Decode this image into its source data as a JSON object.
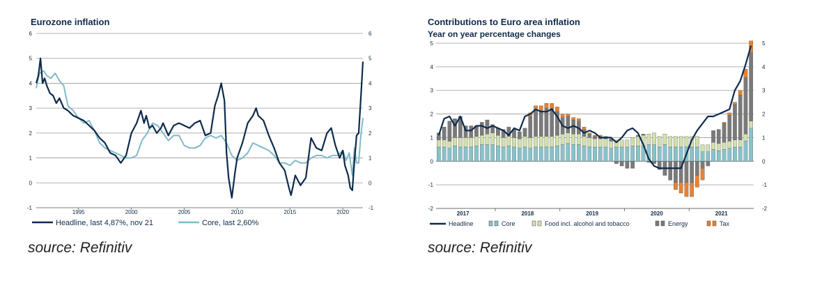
{
  "colors": {
    "headline": "#0d2a4c",
    "core_line": "#7fbac7",
    "core_bar": "#87c3cc",
    "food_bar": "#d2e0ad",
    "energy_bar": "#7a7a7a",
    "tax_bar": "#e8822f",
    "grid": "#9a9a9a"
  },
  "chart_data": [
    {
      "type": "line",
      "title": "Eurozone inflation",
      "ylim": [
        -1,
        6
      ],
      "yticks": [
        "6",
        "5",
        "4",
        "3",
        "2",
        "1",
        "0",
        "-1"
      ],
      "xlim": [
        1991,
        2021.9
      ],
      "xticks": [
        "1995",
        "2000",
        "2005",
        "2010",
        "2015",
        "2020"
      ],
      "legend": [
        "Headline, last 4,87%, nov 21",
        "Core, last 2,60%"
      ],
      "series": [
        {
          "name": "Headline",
          "x": [
            1991.0,
            1991.2,
            1991.4,
            1991.6,
            1991.8,
            1992.0,
            1992.3,
            1992.6,
            1992.9,
            1993.2,
            1993.6,
            1994.0,
            1994.5,
            1995.0,
            1995.5,
            1996.0,
            1996.5,
            1997.0,
            1997.5,
            1998.0,
            1998.5,
            1999.0,
            1999.5,
            2000.0,
            2000.5,
            2000.9,
            2001.2,
            2001.4,
            2001.7,
            2002.0,
            2002.4,
            2002.8,
            2003.0,
            2003.5,
            2004.0,
            2004.5,
            2005.0,
            2005.5,
            2006.0,
            2006.5,
            2007.0,
            2007.5,
            2007.9,
            2008.2,
            2008.5,
            2008.8,
            2009.0,
            2009.2,
            2009.5,
            2009.8,
            2010.0,
            2010.5,
            2011.0,
            2011.5,
            2011.8,
            2012.0,
            2012.5,
            2013.0,
            2013.5,
            2014.0,
            2014.5,
            2014.9,
            2015.1,
            2015.5,
            2016.0,
            2016.5,
            2017.0,
            2017.5,
            2018.0,
            2018.5,
            2018.9,
            2019.3,
            2019.7,
            2020.0,
            2020.2,
            2020.5,
            2020.7,
            2020.9,
            2021.1,
            2021.3,
            2021.5,
            2021.7,
            2021.9
          ],
          "values": [
            4.0,
            4.3,
            5.0,
            4.0,
            4.2,
            3.9,
            3.6,
            3.5,
            3.2,
            3.4,
            3.0,
            2.9,
            2.7,
            2.6,
            2.5,
            2.3,
            2.1,
            1.8,
            1.6,
            1.2,
            1.1,
            0.8,
            1.1,
            2.0,
            2.4,
            2.9,
            2.4,
            2.7,
            2.2,
            2.3,
            2.0,
            2.2,
            2.4,
            1.9,
            2.3,
            2.4,
            2.3,
            2.2,
            2.4,
            2.5,
            1.9,
            2.0,
            3.1,
            3.5,
            4.0,
            3.3,
            1.2,
            0.2,
            -0.6,
            0.4,
            1.0,
            1.6,
            2.4,
            2.7,
            3.0,
            2.7,
            2.5,
            1.9,
            1.4,
            0.8,
            0.5,
            -0.2,
            -0.5,
            0.3,
            -0.1,
            0.2,
            1.8,
            1.4,
            1.3,
            2.0,
            2.2,
            1.5,
            1.0,
            1.3,
            0.7,
            0.3,
            -0.2,
            -0.3,
            0.9,
            1.9,
            2.0,
            3.4,
            4.87
          ]
        },
        {
          "name": "Core",
          "x": [
            1991.0,
            1991.3,
            1991.7,
            1992.0,
            1992.4,
            1992.8,
            1993.2,
            1993.6,
            1994.0,
            1994.5,
            1995.0,
            1995.5,
            1996.0,
            1996.5,
            1997.0,
            1997.5,
            1998.0,
            1998.5,
            1999.0,
            1999.5,
            2000.0,
            2000.5,
            2001.0,
            2001.5,
            2002.0,
            2002.5,
            2003.0,
            2003.5,
            2004.0,
            2004.5,
            2005.0,
            2005.5,
            2006.0,
            2006.5,
            2007.0,
            2007.5,
            2008.0,
            2008.5,
            2009.0,
            2009.5,
            2010.0,
            2010.5,
            2011.0,
            2011.5,
            2012.0,
            2012.5,
            2013.0,
            2013.5,
            2014.0,
            2014.5,
            2015.0,
            2015.5,
            2016.0,
            2016.5,
            2017.0,
            2017.5,
            2018.0,
            2018.5,
            2019.0,
            2019.5,
            2020.0,
            2020.3,
            2020.6,
            2020.9,
            2021.1,
            2021.3,
            2021.5,
            2021.7,
            2021.9
          ],
          "values": [
            3.8,
            4.4,
            4.5,
            4.3,
            4.2,
            4.4,
            4.1,
            3.9,
            3.1,
            2.9,
            2.6,
            2.4,
            2.5,
            2.1,
            1.6,
            1.4,
            1.3,
            1.2,
            1.1,
            1.0,
            1.0,
            1.1,
            1.7,
            2.0,
            2.4,
            2.3,
            2.0,
            1.7,
            1.9,
            1.9,
            1.5,
            1.4,
            1.4,
            1.5,
            1.8,
            1.9,
            1.8,
            1.9,
            1.6,
            1.1,
            0.9,
            1.0,
            1.2,
            1.6,
            1.5,
            1.4,
            1.3,
            1.1,
            0.8,
            0.8,
            0.7,
            0.9,
            0.8,
            0.8,
            1.0,
            1.1,
            1.1,
            1.0,
            1.1,
            1.1,
            1.3,
            0.9,
            1.2,
            0.3,
            1.4,
            0.8,
            0.8,
            1.9,
            2.6
          ]
        }
      ]
    },
    {
      "type": "bar",
      "title": "Contributions to Euro area inflation",
      "subtitle": "Year on year percentage changes",
      "ylim": [
        -2,
        5
      ],
      "yticks": [
        "5",
        "4",
        "3",
        "2",
        "1",
        "0",
        "-1",
        "-2"
      ],
      "xticks": [
        "2017",
        "2018",
        "2019",
        "2020",
        "2021"
      ],
      "legend": [
        "Headline",
        "Core",
        "Food incl. alcohol and tobacco",
        "Energy",
        "Tax"
      ],
      "months": 59,
      "series": [
        {
          "name": "Core",
          "values": [
            0.6,
            0.6,
            0.55,
            0.65,
            0.6,
            0.6,
            0.6,
            0.65,
            0.7,
            0.7,
            0.7,
            0.65,
            0.6,
            0.65,
            0.6,
            0.55,
            0.6,
            0.55,
            0.6,
            0.6,
            0.6,
            0.6,
            0.65,
            0.7,
            0.75,
            0.7,
            0.7,
            0.65,
            0.6,
            0.6,
            0.6,
            0.6,
            0.55,
            0.6,
            0.6,
            0.6,
            0.65,
            0.65,
            0.65,
            0.7,
            0.7,
            0.6,
            0.7,
            0.6,
            0.6,
            0.6,
            0.6,
            0.6,
            0.6,
            0.4,
            0.4,
            0.5,
            0.45,
            0.5,
            0.55,
            0.6,
            0.6,
            0.85,
            1.4
          ]
        },
        {
          "name": "Food",
          "values": [
            0.3,
            0.3,
            0.3,
            0.35,
            0.4,
            0.4,
            0.4,
            0.4,
            0.4,
            0.45,
            0.5,
            0.45,
            0.4,
            0.4,
            0.4,
            0.4,
            0.45,
            0.45,
            0.45,
            0.45,
            0.45,
            0.45,
            0.45,
            0.45,
            0.45,
            0.45,
            0.45,
            0.4,
            0.4,
            0.35,
            0.35,
            0.35,
            0.3,
            0.3,
            0.3,
            0.3,
            0.35,
            0.4,
            0.45,
            0.45,
            0.5,
            0.45,
            0.45,
            0.45,
            0.45,
            0.45,
            0.45,
            0.45,
            0.45,
            0.3,
            0.3,
            0.3,
            0.3,
            0.3,
            0.3,
            0.3,
            0.3,
            0.3,
            0.3
          ]
        },
        {
          "name": "Energy",
          "values": [
            0.3,
            0.55,
            0.85,
            0.8,
            0.9,
            0.5,
            0.5,
            0.45,
            0.55,
            0.6,
            0.35,
            0.3,
            0.35,
            0.4,
            0.35,
            0.3,
            0.35,
            0.9,
            1.1,
            1.1,
            1.2,
            1.2,
            1.0,
            0.7,
            0.7,
            0.6,
            0.55,
            0.3,
            0.15,
            0.1,
            0.1,
            0.1,
            0.1,
            -0.1,
            -0.2,
            -0.3,
            -0.3,
            0.05,
            0.05,
            -0.05,
            -0.1,
            -0.35,
            -0.6,
            -0.8,
            -0.9,
            -0.9,
            -0.9,
            -0.9,
            -0.6,
            -0.3,
            -0.2,
            0.5,
            0.6,
            0.8,
            1.1,
            1.5,
            1.9,
            2.4,
            2.9
          ]
        },
        {
          "name": "Tax",
          "values": [
            0,
            0,
            0,
            0,
            0,
            0,
            0,
            0,
            0,
            0,
            0,
            0,
            0,
            0,
            0,
            0,
            0,
            0.15,
            0.2,
            0.2,
            0.2,
            0.2,
            0.2,
            0.15,
            0.1,
            0.1,
            0.1,
            0.1,
            0.05,
            0.05,
            0.05,
            0,
            0,
            0,
            0,
            0,
            0,
            0,
            0,
            0,
            0,
            0,
            0,
            0,
            -0.3,
            -0.45,
            -0.6,
            -0.6,
            -0.5,
            -0.5,
            0,
            0,
            0,
            0.05,
            0.1,
            0.1,
            0.2,
            0.35,
            0.5
          ]
        },
        {
          "name": "Headline",
          "values": [
            1.1,
            1.8,
            1.9,
            1.5,
            1.9,
            1.3,
            1.3,
            1.5,
            1.5,
            1.4,
            1.5,
            1.4,
            1.3,
            1.1,
            1.4,
            1.3,
            1.9,
            2.0,
            2.2,
            2.1,
            2.1,
            2.2,
            1.9,
            1.5,
            1.4,
            1.5,
            1.4,
            1.2,
            1.3,
            1.2,
            1.0,
            1.0,
            1.0,
            0.8,
            1.0,
            1.3,
            1.4,
            1.2,
            0.7,
            0.1,
            -0.2,
            -0.3,
            -0.3,
            -0.3,
            -0.3,
            -0.3,
            0.3,
            0.9,
            1.3,
            1.6,
            1.9,
            1.9,
            2.0,
            2.1,
            2.2,
            3.0,
            3.4,
            4.1,
            4.9
          ]
        }
      ]
    }
  ],
  "sources": [
    "source: Refinitiv",
    "source: Refinitiv"
  ]
}
